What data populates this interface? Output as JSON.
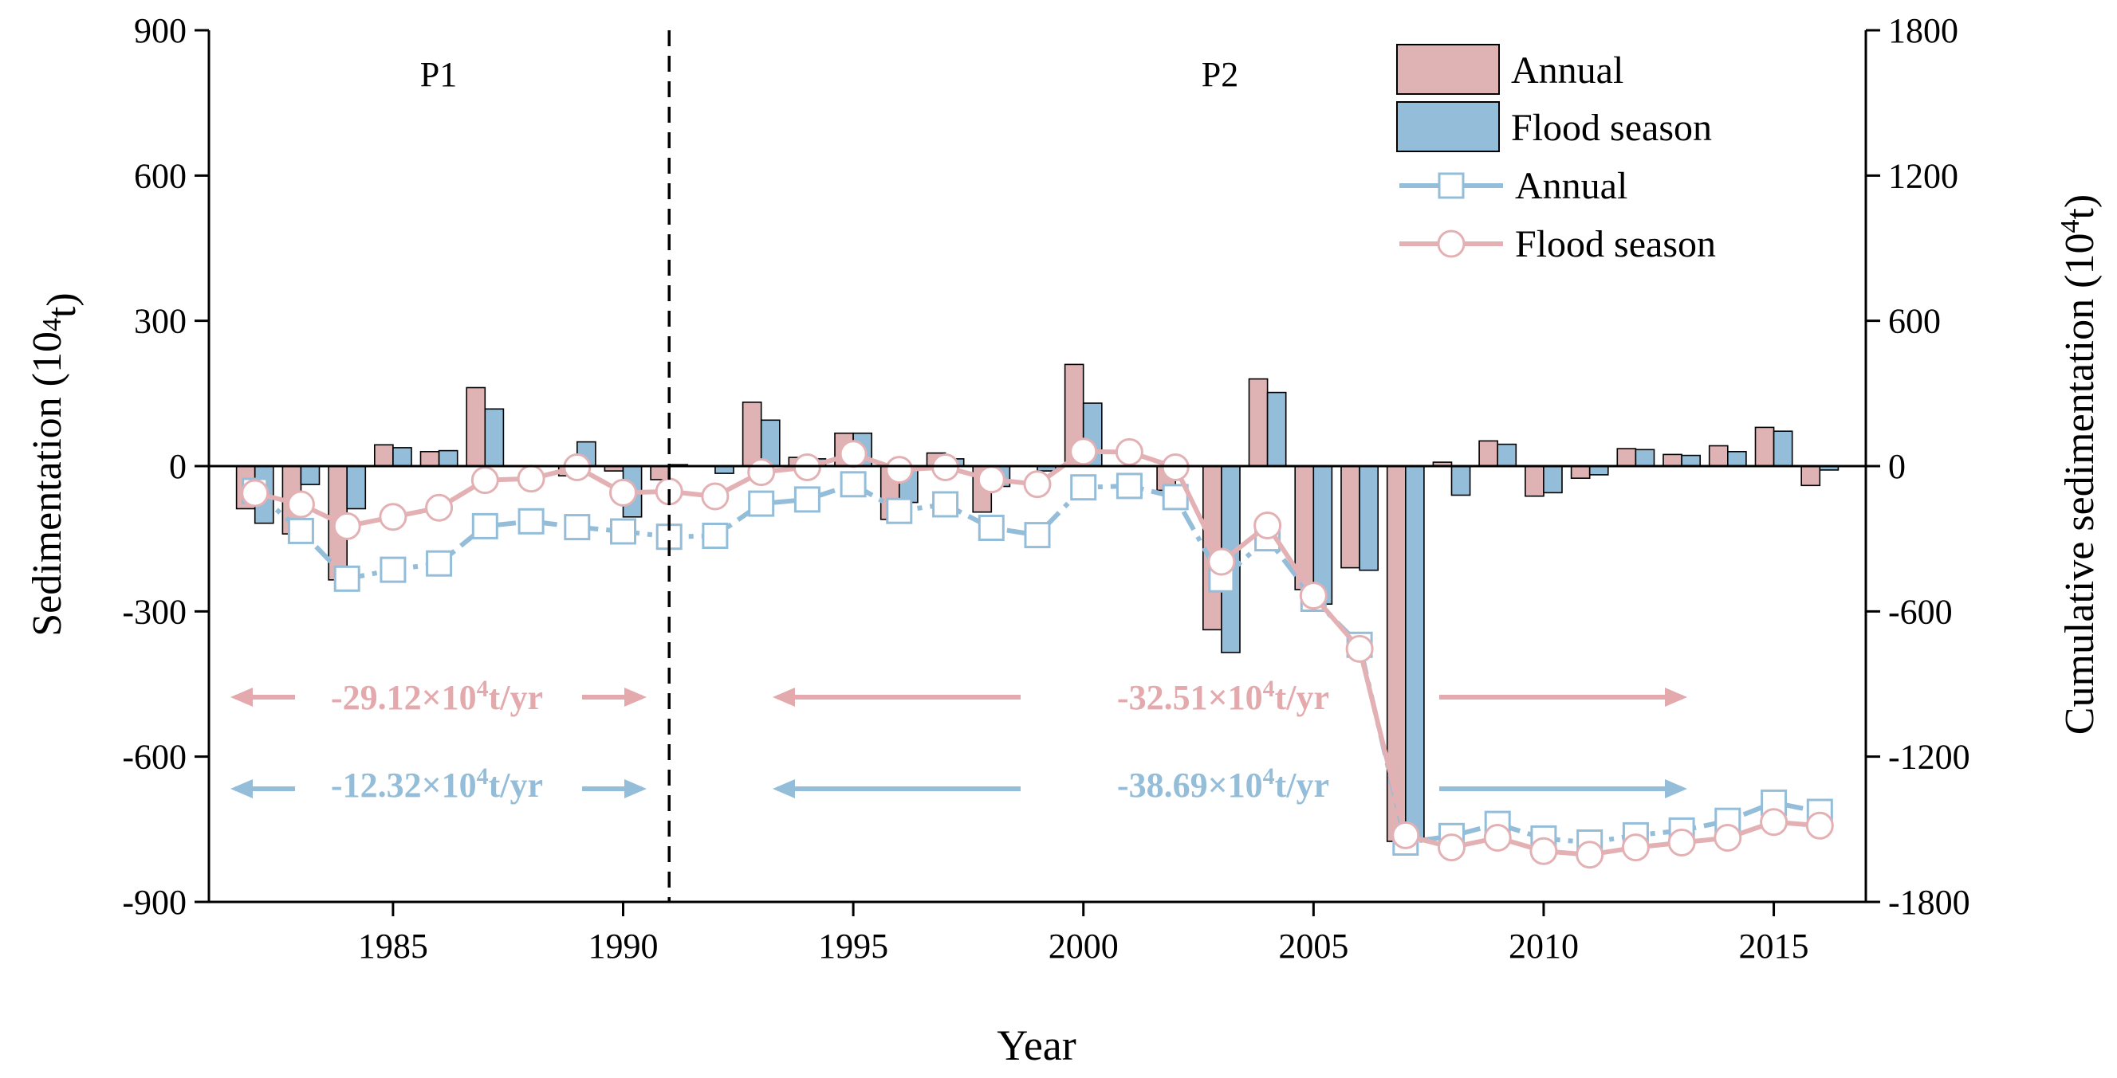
{
  "colors": {
    "annual_bar": "#dfb2b4",
    "flood_bar": "#94bdd9",
    "annual_line": "#94bdd9",
    "flood_line": "#e3b1b4",
    "annual_trend": "#e3a9ad",
    "flood_trend": "#94bdd9",
    "axis": "#000000"
  },
  "chart_data": {
    "type": "bar",
    "xlabel": "Year",
    "ylabel": "Sedimentation (10",
    "ylabel_sup": "4",
    "ylabel_tail": "t)",
    "y2label": "Cumulative sedimentation (10",
    "y2label_sup": "4",
    "y2label_tail": "t)",
    "xlim": [
      1981,
      2017
    ],
    "ylim": [
      -900,
      900
    ],
    "y2lim": [
      -1800,
      1800
    ],
    "x_ticks": [
      1985,
      1990,
      1995,
      2000,
      2005,
      2010,
      2015
    ],
    "y_ticks": [
      900,
      600,
      300,
      0,
      -300,
      -600,
      -900
    ],
    "y2_ticks": [
      1800,
      1200,
      600,
      0,
      -600,
      -1200,
      -1800
    ],
    "years": [
      1982,
      1983,
      1984,
      1985,
      1986,
      1987,
      1988,
      1989,
      1990,
      1991,
      1992,
      1993,
      1994,
      1995,
      1996,
      1997,
      1998,
      1999,
      2000,
      2001,
      2002,
      2003,
      2004,
      2005,
      2006,
      2007,
      2008,
      2009,
      2010,
      2011,
      2012,
      2013,
      2014,
      2015,
      2016
    ],
    "bar_series": [
      {
        "name": "Annual",
        "values": [
          -88,
          -140,
          -235,
          44,
          30,
          162,
          0,
          -20,
          -10,
          -28,
          0,
          132,
          18,
          68,
          -110,
          27,
          -95,
          0,
          210,
          0,
          -50,
          -338,
          180,
          -255,
          -210,
          -775,
          8,
          52,
          -62,
          -25,
          36,
          24,
          42,
          80,
          -40
        ]
      },
      {
        "name": "Flood season",
        "values": [
          -118,
          -38,
          -88,
          38,
          32,
          118,
          0,
          50,
          -105,
          3,
          -15,
          95,
          15,
          68,
          -75,
          15,
          -42,
          -10,
          130,
          0,
          0,
          -385,
          152,
          -285,
          -215,
          -770,
          -60,
          45,
          -55,
          -18,
          34,
          22,
          30,
          72,
          -8
        ]
      }
    ],
    "line_series": [
      {
        "name": "Annual",
        "values": [
          -102,
          -268,
          -465,
          -428,
          -402,
          -248,
          -228,
          -252,
          -270,
          -292,
          -288,
          -155,
          -138,
          -75,
          -185,
          -158,
          -255,
          -285,
          -88,
          -82,
          -128,
          -468,
          -298,
          -548,
          -738,
          -1555,
          -1528,
          -1478,
          -1538,
          -1555,
          -1525,
          -1505,
          -1465,
          -1390,
          -1428
        ]
      },
      {
        "name": "Flood season",
        "values": [
          -112,
          -158,
          -248,
          -210,
          -172,
          -58,
          -52,
          -5,
          -110,
          -105,
          -125,
          -25,
          -5,
          50,
          -15,
          -5,
          -55,
          -75,
          60,
          58,
          -5,
          -395,
          -245,
          -535,
          -755,
          -1525,
          -1575,
          -1535,
          -1590,
          -1605,
          -1575,
          -1555,
          -1535,
          -1470,
          -1485
        ]
      }
    ],
    "periods": {
      "p1": "P1",
      "p2": "P2",
      "divider_year": 1991
    },
    "trends": {
      "p1_annual": {
        "value": "-29.12×10",
        "sup": "4",
        "unit": "t/yr"
      },
      "p1_flood": {
        "value": "-12.32×10",
        "sup": "4",
        "unit": "t/yr"
      },
      "p2_annual": {
        "value": "-32.51×10",
        "sup": "4",
        "unit": "t/yr"
      },
      "p2_flood": {
        "value": "-38.69×10",
        "sup": "4",
        "unit": "t/yr"
      }
    },
    "legend": {
      "position": "top-right",
      "items": [
        {
          "label": "Annual",
          "kind": "bar"
        },
        {
          "label": "Flood season",
          "kind": "bar"
        },
        {
          "label": "Annual",
          "kind": "line-square"
        },
        {
          "label": "Flood season",
          "kind": "line-circle"
        }
      ]
    }
  }
}
